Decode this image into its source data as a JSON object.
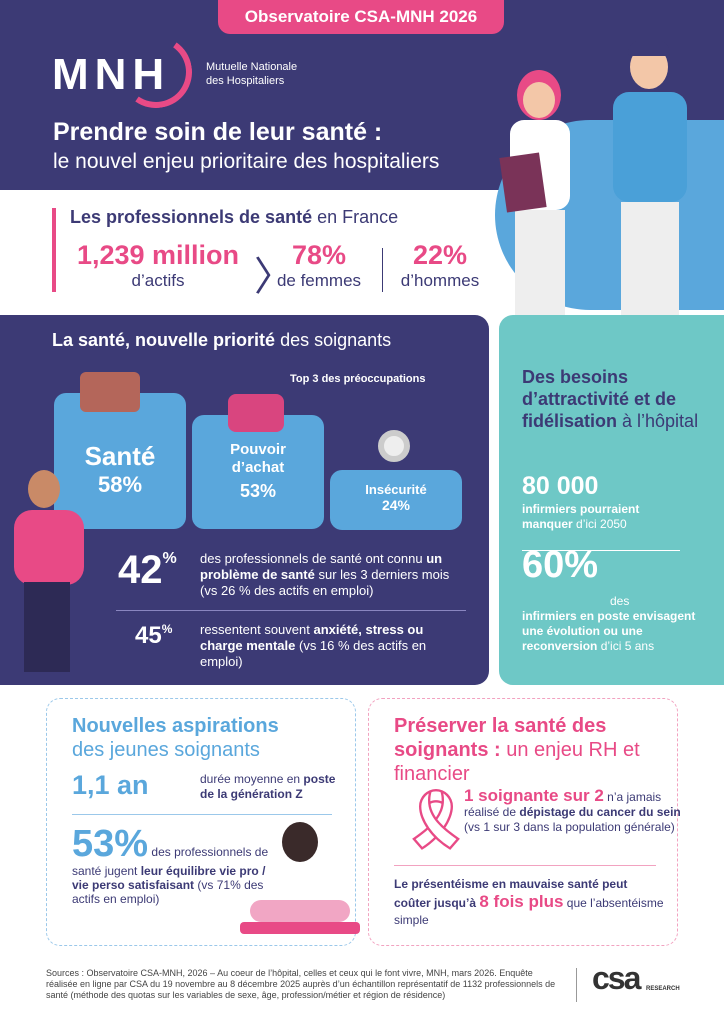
{
  "header": {
    "badge": "Observatoire CSA-MNH 2026",
    "logo": "MNH",
    "logo_sub_1": "Mutuelle Nationale",
    "logo_sub_2": "des Hospitaliers",
    "title": "Prendre soin de leur santé :",
    "subtitle": "le nouvel enjeu prioritaire des hospitaliers"
  },
  "pros": {
    "title_bold": "Les professionnels de santé",
    "title_rest": " en France",
    "stats": [
      {
        "value": "1,239 million",
        "label": "d’actifs"
      },
      {
        "value": "78%",
        "label": "de femmes"
      },
      {
        "value": "22%",
        "label": "d’hommes"
      }
    ]
  },
  "priority": {
    "title_bold": "La santé, nouvelle priorité",
    "title_rest": " des soignants",
    "top3": "Top 3 des préoccupations",
    "cards": [
      {
        "label": "Santé",
        "value": "58%"
      },
      {
        "label": "Pouvoir d’achat",
        "value": "53%"
      },
      {
        "label": "Insécurité",
        "value": "24%"
      }
    ],
    "s1": {
      "value": "42",
      "pct": "%",
      "t1": "des professionnels de santé ont connu ",
      "b1": "un problème de santé",
      "t2": " sur les 3 derniers mois (vs 26 % des actifs en emploi)"
    },
    "s2": {
      "value": "45",
      "pct": "%",
      "t1": "ressentent souvent ",
      "b1": "anxiété, stress ou charge mentale",
      "t2": " (vs 16 % des actifs en emploi)"
    }
  },
  "attract": {
    "t1": "Des besoins d’attractivité et de fidélisation",
    "t2": " à l’hôpital",
    "n1": "80 000",
    "d1b": "infirmiers pourraient manquer",
    "d1": " d’ici 2050",
    "n2": "60%",
    "d2a": " des ",
    "d2b": "infirmiers en poste envisagent une évolution ou une reconversion",
    "d2": " d’ici 5 ans"
  },
  "young": {
    "t1": "Nouvelles aspirations",
    "t2": "des jeunes soignants",
    "n1": "1,1 an",
    "d1": "durée moyenne en ",
    "d1b": "poste de la génération Z",
    "n2": "53%",
    "d2": " des professionnels de santé jugent ",
    "d2b": "leur équilibre vie pro / vie perso satisfaisant",
    "d2c": " (vs 71% des actifs en emploi)"
  },
  "rh": {
    "t1": "Préserver la santé des soignants :",
    "t2": " un enjeu RH et financier",
    "n1": "1 soignante sur 2",
    "d1": " n’a jamais réalisé de ",
    "d1b": "dépistage du cancer du sein",
    "d1c": " (vs 1 sur 3 dans la population générale)",
    "p1": "Le présentéisme en mauvaise santé peut coûter jusqu’à ",
    "p1b": "8 fois plus",
    "p1c": " que l’absentéisme simple"
  },
  "footer": {
    "sources": "Sources : Observatoire CSA-MNH, 2026 – Au coeur de l’hôpital, celles et ceux qui le font vivre, MNH, mars 2026. Enquête réalisée en ligne par CSA du 19 novembre au 8 décembre 2025 auprès d’un échantillon représentatif de 1132 professionnels de santé (méthode des quotas sur les variables de sexe, âge, profession/métier et région de résidence)",
    "csa": "csa",
    "csa_sub": "RESEARCH"
  },
  "colors": {
    "navy": "#3c3a75",
    "pink": "#e84a86",
    "blue": "#5aa7dc",
    "teal": "#6ec8c6"
  }
}
